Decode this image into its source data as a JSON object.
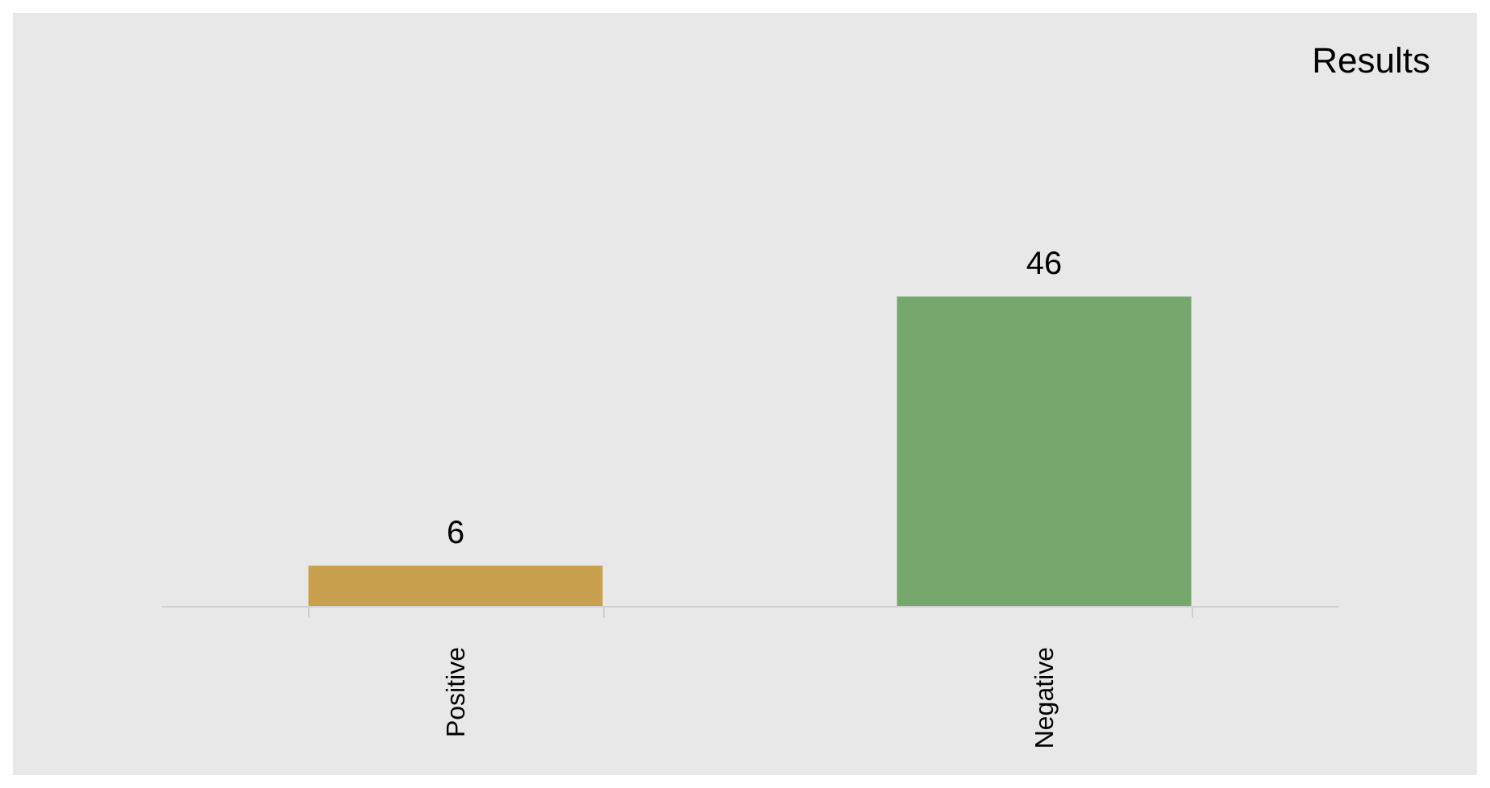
{
  "chart_data": {
    "type": "bar",
    "title": "Results",
    "categories": [
      "Positive",
      "Negative"
    ],
    "values": [
      6,
      46
    ],
    "colors": [
      "#c9a14e",
      "#76a86e"
    ],
    "data_labels": true
  }
}
